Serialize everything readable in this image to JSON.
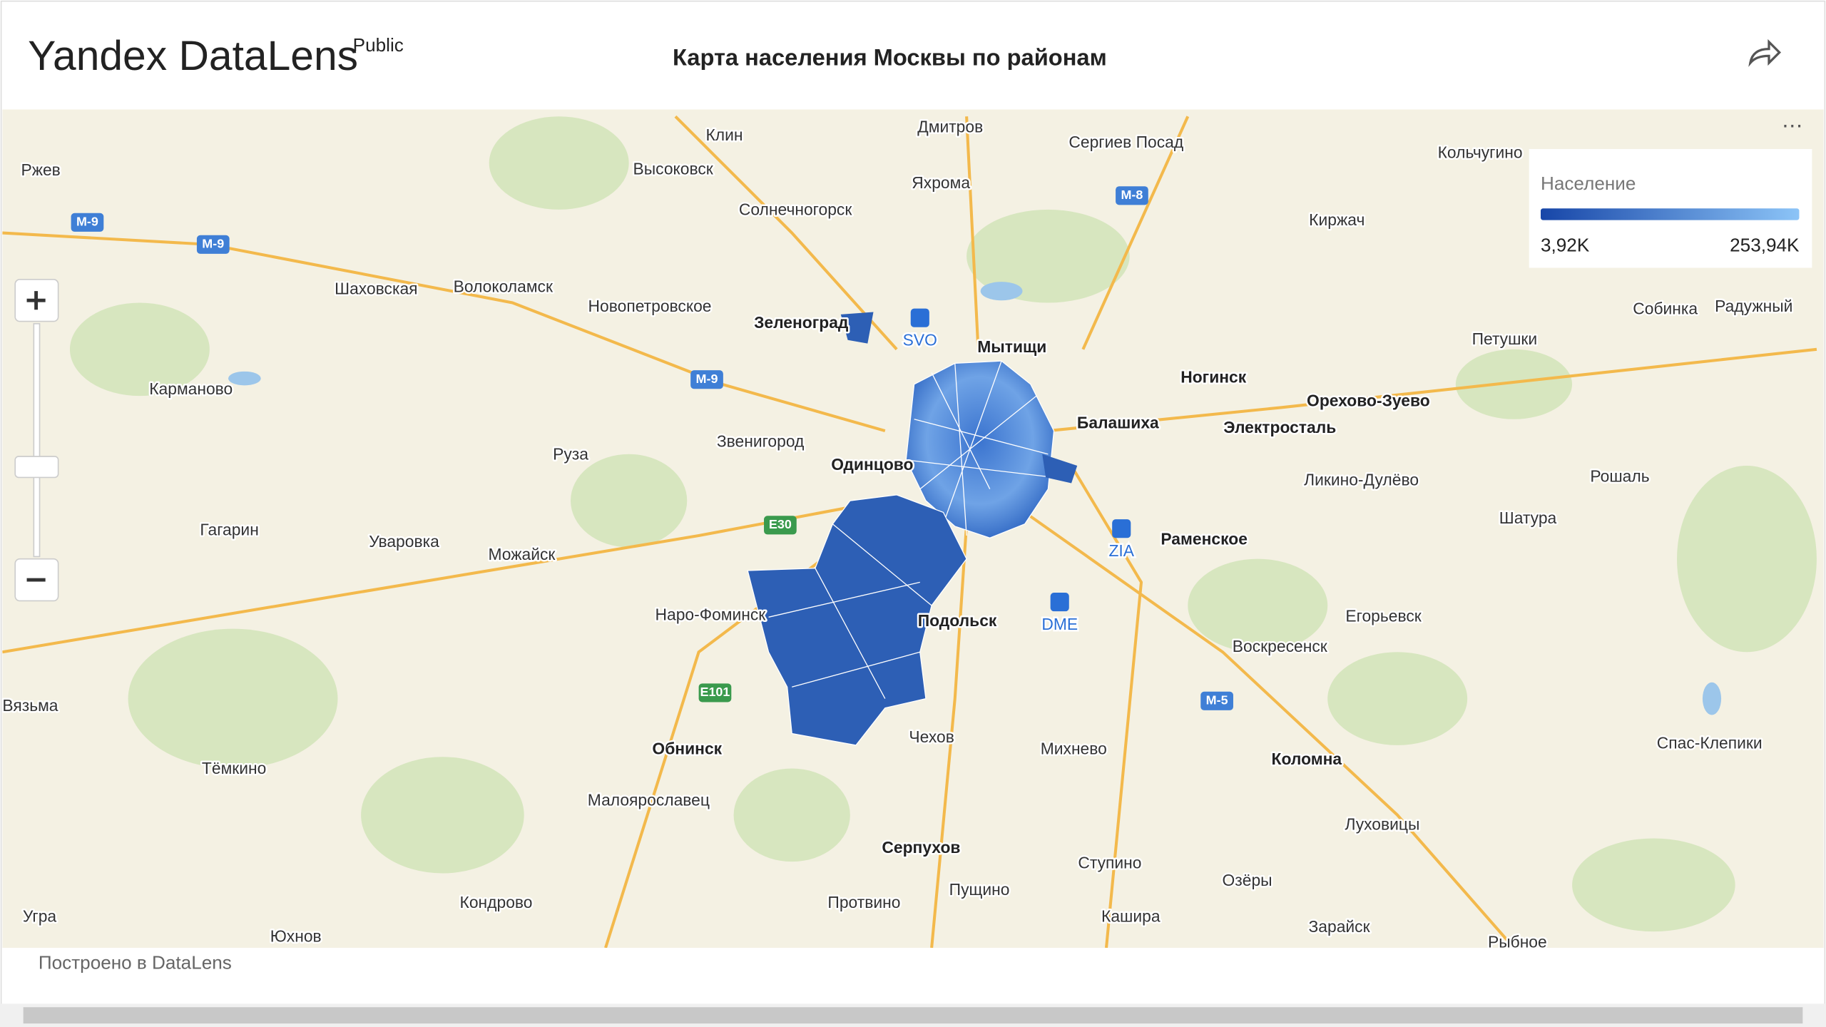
{
  "header": {
    "brand": "Yandex DataLens",
    "badge": "Public",
    "title": "Карта населения Москвы по районам"
  },
  "map": {
    "places": [
      {
        "name": "Клин",
        "bold": false
      },
      {
        "name": "Дмитров",
        "bold": false
      },
      {
        "name": "Сергиев Посад",
        "bold": false
      },
      {
        "name": "Кольчугино",
        "bold": false
      },
      {
        "name": "Ржев",
        "bold": false
      },
      {
        "name": "Высоковск",
        "bold": false
      },
      {
        "name": "Яхрома",
        "bold": false
      },
      {
        "name": "Солнечногорск",
        "bold": false
      },
      {
        "name": "Киржач",
        "bold": false
      },
      {
        "name": "Шаховская",
        "bold": false
      },
      {
        "name": "Волоколамск",
        "bold": false
      },
      {
        "name": "Новопетровское",
        "bold": false
      },
      {
        "name": "Зеленоград",
        "bold": true
      },
      {
        "name": "Мытищи",
        "bold": true
      },
      {
        "name": "Собинка",
        "bold": false
      },
      {
        "name": "Радужный",
        "bold": false
      },
      {
        "name": "Петушки",
        "bold": false
      },
      {
        "name": "Карманово",
        "bold": false
      },
      {
        "name": "Ногинск",
        "bold": true
      },
      {
        "name": "Орехово-Зуево",
        "bold": true
      },
      {
        "name": "Балашиха",
        "bold": true
      },
      {
        "name": "Электросталь",
        "bold": true
      },
      {
        "name": "Звенигород",
        "bold": false
      },
      {
        "name": "Руза",
        "bold": false
      },
      {
        "name": "Одинцово",
        "bold": true
      },
      {
        "name": "Ликино-Дулёво",
        "bold": false
      },
      {
        "name": "Рошаль",
        "bold": false
      },
      {
        "name": "Гагарин",
        "bold": false
      },
      {
        "name": "Шатура",
        "bold": false
      },
      {
        "name": "Уваровка",
        "bold": false
      },
      {
        "name": "Можайск",
        "bold": false
      },
      {
        "name": "Раменское",
        "bold": true
      },
      {
        "name": "Наро-Фоминск",
        "bold": false
      },
      {
        "name": "Подольск",
        "bold": true
      },
      {
        "name": "Егорьевск",
        "bold": false
      },
      {
        "name": "Воскресенск",
        "bold": false
      },
      {
        "name": "Вязьма",
        "bold": false
      },
      {
        "name": "Чехов",
        "bold": false
      },
      {
        "name": "Обнинск",
        "bold": true
      },
      {
        "name": "Михнево",
        "bold": false
      },
      {
        "name": "Коломна",
        "bold": true
      },
      {
        "name": "Спас-Клепики",
        "bold": false
      },
      {
        "name": "Тёмкино",
        "bold": false
      },
      {
        "name": "Малоярославец",
        "bold": false
      },
      {
        "name": "Луховицы",
        "bold": false
      },
      {
        "name": "Серпухов",
        "bold": true
      },
      {
        "name": "Ступино",
        "bold": false
      },
      {
        "name": "Озёры",
        "bold": false
      },
      {
        "name": "Пущино",
        "bold": false
      },
      {
        "name": "Кондрово",
        "bold": false
      },
      {
        "name": "Протвино",
        "bold": false
      },
      {
        "name": "Угра",
        "bold": false
      },
      {
        "name": "Кашира",
        "bold": false
      },
      {
        "name": "Зарайск",
        "bold": false
      },
      {
        "name": "Юхнов",
        "bold": false
      },
      {
        "name": "Рыбное",
        "bold": false
      }
    ],
    "road_signs": [
      "M-9",
      "M-9",
      "M-8",
      "M-9",
      "E30",
      "E101",
      "M-5"
    ],
    "airports": [
      "SVO",
      "ZIA",
      "DME"
    ]
  },
  "legend": {
    "title": "Население",
    "min": "3,92K",
    "max": "253,94K"
  },
  "footer": {
    "text": "Построено в DataLens"
  }
}
